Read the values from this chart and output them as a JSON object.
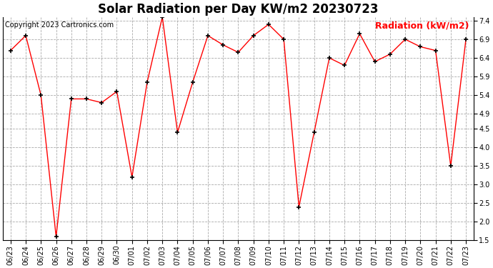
{
  "title": "Solar Radiation per Day KW/m2 20230723",
  "copyright_text": "Copyright 2023 Cartronics.com",
  "legend_label": "Radiation (kW/m2)",
  "dates": [
    "06/23",
    "06/24",
    "06/25",
    "06/26",
    "06/27",
    "06/28",
    "06/29",
    "06/30",
    "07/01",
    "07/02",
    "07/03",
    "07/04",
    "07/05",
    "07/06",
    "07/07",
    "07/08",
    "07/09",
    "07/10",
    "07/11",
    "07/12",
    "07/13",
    "07/14",
    "07/15",
    "07/16",
    "07/17",
    "07/18",
    "07/19",
    "07/20",
    "07/21",
    "07/22",
    "07/23"
  ],
  "values": [
    6.6,
    7.0,
    5.4,
    1.6,
    5.3,
    5.3,
    5.2,
    5.5,
    3.2,
    5.75,
    7.5,
    4.4,
    5.75,
    7.0,
    6.75,
    6.55,
    7.0,
    7.3,
    6.9,
    2.4,
    4.4,
    6.4,
    6.2,
    7.05,
    6.3,
    6.5,
    6.9,
    6.7,
    6.6,
    3.5,
    6.9
  ],
  "line_color": "red",
  "marker_color": "black",
  "grid_color": "#aaaaaa",
  "bg_color": "#ffffff",
  "plot_bg_color": "#ffffff",
  "title_fontsize": 12,
  "tick_fontsize": 7,
  "legend_fontsize": 9,
  "copyright_fontsize": 7,
  "ylim": [
    1.5,
    7.5
  ],
  "yticks": [
    1.5,
    2.0,
    2.5,
    3.0,
    3.5,
    4.0,
    4.5,
    4.9,
    5.4,
    5.9,
    6.4,
    6.9,
    7.4
  ]
}
